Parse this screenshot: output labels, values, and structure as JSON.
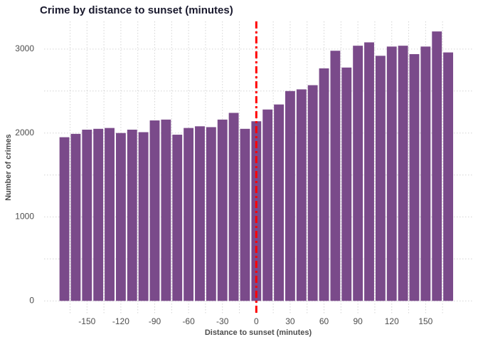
{
  "chart_data": {
    "type": "histogram",
    "title": "Crime by distance to sunset (minutes)",
    "x_label": "Distance to sunset (minutes)",
    "y_label": "Number of crimes",
    "bins": [
      -175,
      -165,
      -155,
      -145,
      -135,
      -125,
      -115,
      -105,
      -95,
      -85,
      -75,
      -65,
      -55,
      -45,
      -35,
      -25,
      -15,
      -5,
      5,
      15,
      25,
      35,
      45,
      55,
      65,
      75,
      85,
      95,
      105,
      115,
      125,
      135,
      145,
      155,
      165,
      175
    ],
    "values": [
      1950,
      1990,
      2040,
      2050,
      2060,
      2000,
      2040,
      2010,
      2150,
      2160,
      1980,
      2060,
      2080,
      2070,
      2160,
      2240,
      2050,
      2140,
      2280,
      2340,
      2500,
      2520,
      2570,
      2770,
      2980,
      2780,
      3040,
      3080,
      2920,
      3030,
      3040,
      2940,
      3030,
      3210,
      2960
    ],
    "color": "#7a4a8a",
    "vline": 0,
    "vline_color": "#ff0000",
    "xlim": [
      -188,
      192
    ],
    "xticks": [
      -150,
      -120,
      -90,
      -60,
      -30,
      0,
      30,
      60,
      90,
      120,
      150
    ],
    "ylim": [
      -150,
      3330
    ],
    "yticks": [
      0,
      1000,
      2000,
      3000
    ],
    "grid": true
  }
}
